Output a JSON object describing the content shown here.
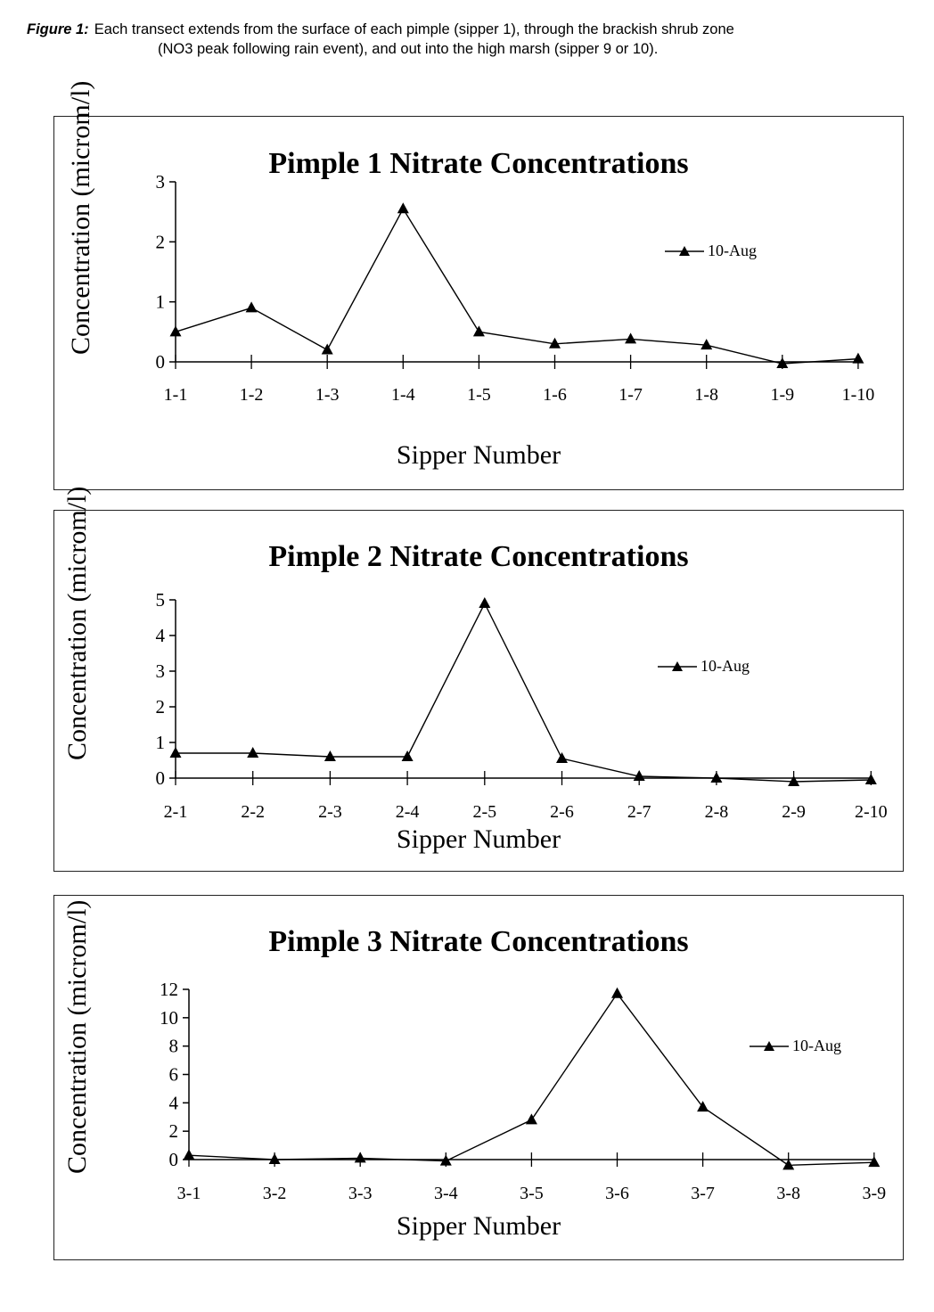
{
  "figure_caption": {
    "label": "Figure 1:",
    "line1": "Each transect extends from the surface of each pimple (sipper 1), through the brackish shrub zone",
    "line2": "(NO3 peak following rain event), and out into the high marsh (sipper 9 or 10)."
  },
  "chart_data": [
    {
      "type": "line",
      "title": "Pimple 1 Nitrate Concentrations",
      "xlabel": "Sipper Number",
      "ylabel": "Concentration (microm/l)",
      "categories": [
        "1-1",
        "1-2",
        "1-3",
        "1-4",
        "1-5",
        "1-6",
        "1-7",
        "1-8",
        "1-9",
        "1-10"
      ],
      "series": [
        {
          "name": "10-Aug",
          "values": [
            0.5,
            0.9,
            0.2,
            2.55,
            0.5,
            0.3,
            0.38,
            0.28,
            -0.03,
            0.05
          ]
        }
      ],
      "ylim": [
        0,
        3
      ],
      "yticks": [
        0,
        1,
        2,
        3
      ],
      "grid": false,
      "legend": "right",
      "line_color": "#000000"
    },
    {
      "type": "line",
      "title": "Pimple 2 Nitrate Concentrations",
      "xlabel": "Sipper Number",
      "ylabel": "Concentration (microm/l)",
      "categories": [
        "2-1",
        "2-2",
        "2-3",
        "2-4",
        "2-5",
        "2-6",
        "2-7",
        "2-8",
        "2-9",
        "2-10"
      ],
      "series": [
        {
          "name": "10-Aug",
          "values": [
            0.7,
            0.7,
            0.6,
            0.6,
            4.9,
            0.55,
            0.05,
            0.0,
            -0.1,
            -0.05
          ]
        }
      ],
      "ylim": [
        0,
        5
      ],
      "yticks": [
        0,
        1,
        2,
        3,
        4,
        5
      ],
      "grid": false,
      "legend": "right",
      "line_color": "#000000"
    },
    {
      "type": "line",
      "title": "Pimple 3 Nitrate Concentrations",
      "xlabel": "Sipper Number",
      "ylabel": "Concentration (microm/l)",
      "categories": [
        "3-1",
        "3-2",
        "3-3",
        "3-4",
        "3-5",
        "3-6",
        "3-7",
        "3-8",
        "3-9"
      ],
      "series": [
        {
          "name": "10-Aug",
          "values": [
            0.3,
            0.0,
            0.1,
            -0.1,
            2.8,
            11.7,
            3.7,
            -0.4,
            -0.2
          ]
        }
      ],
      "ylim": [
        0,
        12
      ],
      "yticks": [
        0,
        2,
        4,
        6,
        8,
        10,
        12
      ],
      "grid": false,
      "legend": "right",
      "line_color": "#000000"
    }
  ]
}
